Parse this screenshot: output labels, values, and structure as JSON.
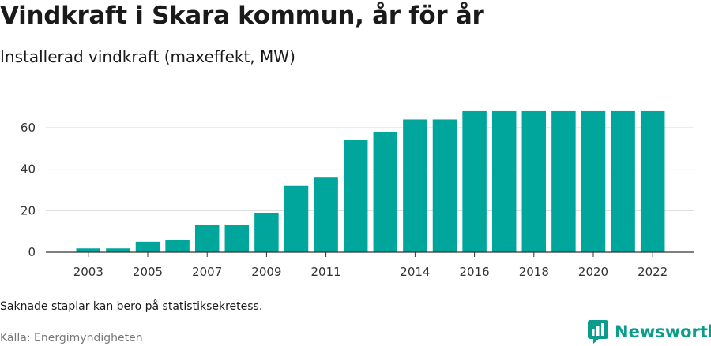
{
  "title": "Vindkraft i Skara kommun, år för år",
  "subtitle": "Installerad vindkraft (maxeffekt, MW)",
  "note": "Saknade staplar kan bero på statistiksekretess.",
  "source": "Källa: Energimyndigheten",
  "brand": {
    "name": "Newsworthy",
    "color": "#0b9c8b"
  },
  "colors": {
    "bar": "#00a59b",
    "grid": "#d9d9d9",
    "axis": "#333333"
  },
  "chart_data": {
    "type": "bar",
    "title": "Vindkraft i Skara kommun, år för år",
    "subtitle": "Installerad vindkraft (maxeffekt, MW)",
    "categories": [
      "2003",
      "2004",
      "2005",
      "2006",
      "2007",
      "2008",
      "2009",
      "2010",
      "2011",
      "2012",
      "2013",
      "2014",
      "2015",
      "2016",
      "2017",
      "2018",
      "2019",
      "2020",
      "2021",
      "2022"
    ],
    "values": [
      1.8,
      1.8,
      5,
      6,
      13,
      13,
      19,
      32,
      36,
      54,
      58,
      64,
      64,
      68,
      68,
      68,
      68,
      68,
      68,
      68
    ],
    "x_tick_labels": [
      "2003",
      "2005",
      "2007",
      "2009",
      "2011",
      "2014",
      "2016",
      "2018",
      "2020",
      "2022"
    ],
    "y_ticks": [
      0,
      20,
      40,
      60
    ],
    "ylim": [
      0,
      70
    ],
    "grid": true,
    "legend": "none"
  }
}
